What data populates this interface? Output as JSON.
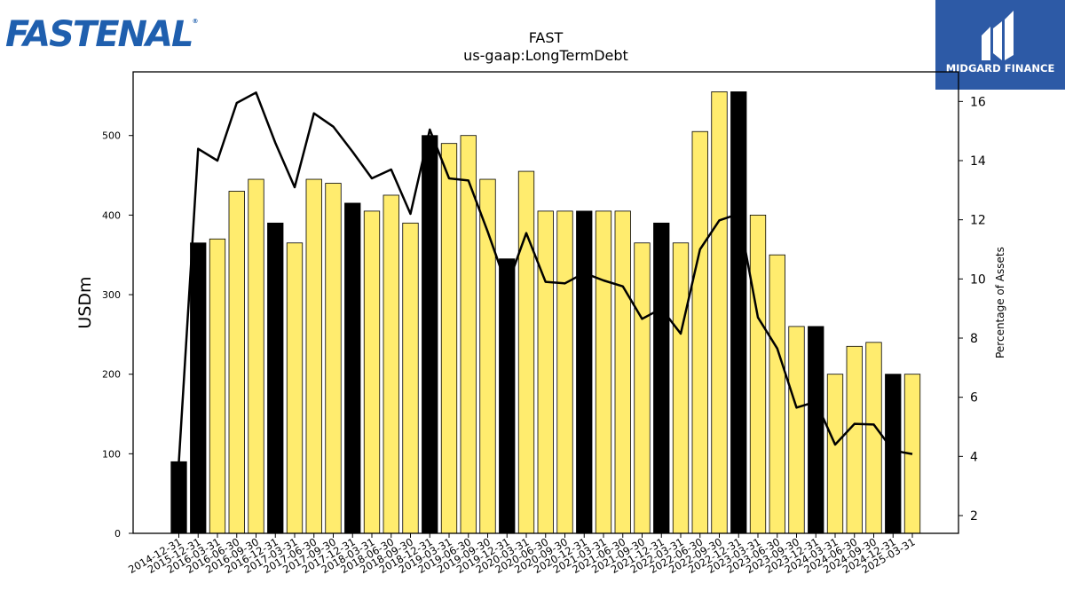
{
  "brand": {
    "company_logo": "FASTENAL",
    "partner_logo": "MIDGARD FINANCE"
  },
  "chart_data": {
    "type": "bar",
    "title": "FAST",
    "subtitle": "us-gaap:LongTermDebt",
    "ylabel": "USDm",
    "y2label": "Percentage of Assets",
    "ylim": [
      0,
      580
    ],
    "y2lim": [
      1.4,
      17.0
    ],
    "yticks": [
      0,
      100,
      200,
      300,
      400,
      500
    ],
    "y2ticks": [
      2,
      4,
      6,
      8,
      10,
      12,
      14,
      16
    ],
    "categories": [
      "2014-12-31",
      "2015-12-31",
      "2016-03-31",
      "2016-06-30",
      "2016-09-30",
      "2016-12-31",
      "2017-03-31",
      "2017-06-30",
      "2017-09-30",
      "2017-12-31",
      "2018-03-31",
      "2018-06-30",
      "2018-09-30",
      "2018-12-31",
      "2019-03-31",
      "2019-06-30",
      "2019-09-30",
      "2019-12-31",
      "2020-03-31",
      "2020-06-30",
      "2020-09-30",
      "2020-12-31",
      "2021-03-31",
      "2021-06-30",
      "2021-09-30",
      "2021-12-31",
      "2022-03-31",
      "2022-06-30",
      "2022-09-30",
      "2022-12-31",
      "2023-03-31",
      "2023-06-30",
      "2023-09-30",
      "2023-12-31",
      "2024-03-31",
      "2024-06-30",
      "2024-09-30",
      "2024-12-31",
      "2025-03-31"
    ],
    "series": [
      {
        "type": "bar",
        "values": [
          90,
          365,
          370,
          430,
          445,
          390,
          365,
          445,
          440,
          415,
          405,
          425,
          390,
          500,
          490,
          500,
          445,
          345,
          455,
          405,
          405,
          405,
          405,
          405,
          365,
          390,
          365,
          505,
          555,
          555,
          400,
          350,
          260,
          260,
          200,
          235,
          240,
          200,
          200
        ],
        "highlight": [
          true,
          true,
          false,
          false,
          false,
          true,
          false,
          false,
          false,
          true,
          false,
          false,
          false,
          true,
          false,
          false,
          false,
          true,
          false,
          false,
          false,
          true,
          false,
          false,
          false,
          true,
          false,
          false,
          false,
          true,
          false,
          false,
          false,
          true,
          false,
          false,
          false,
          true,
          false
        ]
      },
      {
        "type": "line",
        "axis": "y2",
        "values": [
          3.8,
          14.4,
          14.0,
          15.95,
          16.3,
          14.6,
          13.1,
          15.6,
          15.15,
          14.3,
          13.4,
          13.7,
          12.2,
          15.05,
          13.4,
          13.33,
          11.6,
          9.75,
          11.55,
          9.9,
          9.85,
          10.2,
          9.95,
          9.75,
          8.65,
          9.0,
          8.15,
          11.0,
          11.98,
          12.2,
          8.7,
          7.65,
          5.65,
          5.85,
          4.4,
          5.1,
          5.08,
          4.2,
          4.08
        ]
      }
    ],
    "grid": false,
    "colors": {
      "bar": "#ffec6e",
      "bar_highlight": "#000000",
      "line": "#000000",
      "partner_bg": "#2d5aa6",
      "logo": "#1f5fae"
    }
  }
}
